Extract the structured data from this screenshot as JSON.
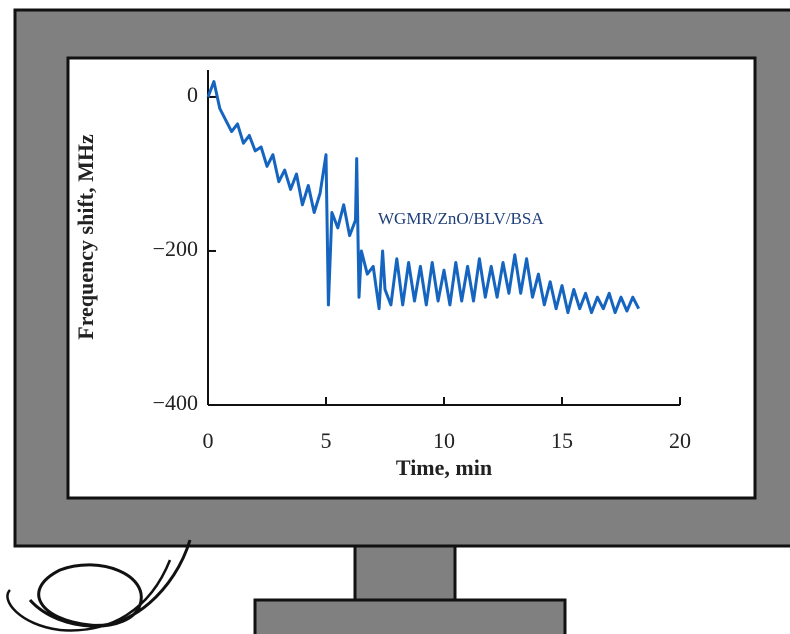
{
  "chart_data": {
    "type": "line",
    "annotation": "WGMR/ZnO/BLV/BSA",
    "x_label": "Time, min",
    "y_label": "Frequency shift, MHz",
    "xlim": [
      0,
      20
    ],
    "xticks": [
      0,
      5,
      10,
      15,
      20
    ],
    "ylim": [
      -400,
      35
    ],
    "yticks": [
      {
        "value": -400,
        "label": "−400"
      },
      {
        "value": -200,
        "label": "−200"
      },
      0
    ],
    "series": [
      {
        "color": "#1565c0",
        "x": [
          0,
          0.25,
          0.5,
          0.75,
          1,
          1.25,
          1.5,
          1.75,
          2,
          2.25,
          2.5,
          2.75,
          3,
          3.25,
          3.5,
          3.75,
          4,
          4.25,
          4.5,
          4.75,
          5,
          5.1,
          5.25,
          5.5,
          5.75,
          6,
          6.25,
          6.3,
          6.4,
          6.5,
          6.75,
          7,
          7.25,
          7.4,
          7.5,
          7.75,
          8,
          8.25,
          8.5,
          8.75,
          9,
          9.25,
          9.5,
          9.75,
          10,
          10.25,
          10.5,
          10.75,
          11,
          11.25,
          11.5,
          11.75,
          12,
          12.25,
          12.5,
          12.75,
          13,
          13.25,
          13.5,
          13.75,
          14,
          14.25,
          14.5,
          14.75,
          15,
          15.25,
          15.5,
          15.75,
          16,
          16.25,
          16.5,
          16.75,
          17,
          17.25,
          17.5,
          17.75,
          18,
          18.25
        ],
        "values": [
          0,
          20,
          -15,
          -30,
          -45,
          -35,
          -60,
          -50,
          -70,
          -65,
          -90,
          -75,
          -110,
          -95,
          -120,
          -100,
          -140,
          -115,
          -150,
          -125,
          -75,
          -270,
          -150,
          -170,
          -140,
          -180,
          -160,
          -80,
          -260,
          -200,
          -230,
          -220,
          -275,
          -200,
          -250,
          -270,
          -210,
          -270,
          -215,
          -265,
          -220,
          -270,
          -215,
          -265,
          -225,
          -270,
          -215,
          -265,
          -220,
          -265,
          -210,
          -260,
          -220,
          -260,
          -215,
          -255,
          -205,
          -255,
          -210,
          -260,
          -230,
          -270,
          -240,
          -275,
          -245,
          -280,
          -250,
          -275,
          -255,
          -280,
          -260,
          -275,
          -255,
          -280,
          -260,
          -278,
          -260,
          -275
        ]
      }
    ]
  }
}
